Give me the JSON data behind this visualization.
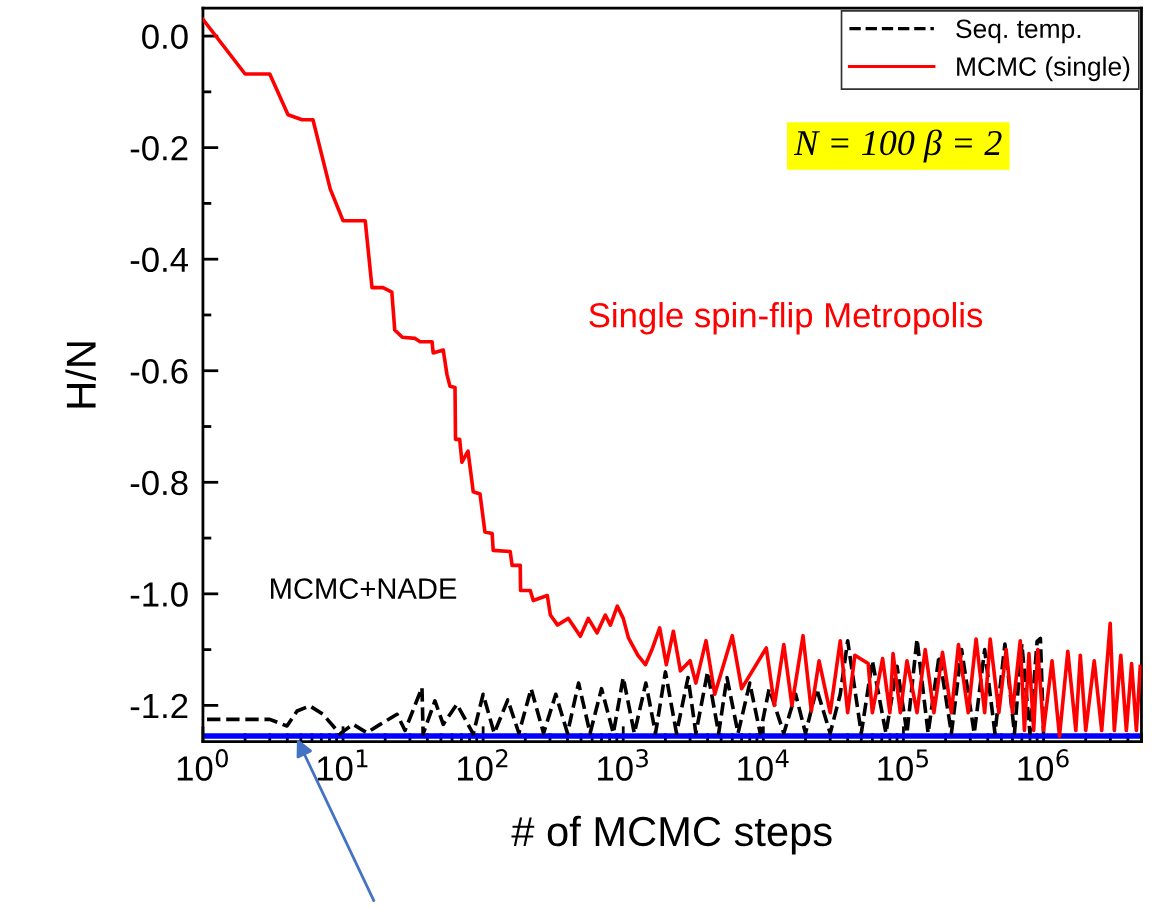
{
  "chart_data": {
    "type": "line",
    "xlabel": "# of MCMC steps",
    "ylabel": "H/N",
    "log": "x",
    "grid": false,
    "legend": "top right",
    "marker": "none",
    "xlim": [
      1,
      5000000
    ],
    "ylim": [
      -1.265,
      0.05
    ],
    "xticks": [
      {
        "value": 1,
        "label": "10$^{0}$"
      },
      {
        "value": 10,
        "label": "10$^{1}$"
      },
      {
        "value": 100,
        "label": "10$^{2}$"
      },
      {
        "value": 1000,
        "label": "10$^{3}$"
      },
      {
        "value": 10000,
        "label": "10$^{4}$"
      },
      {
        "value": 100000,
        "label": "10$^{5}$"
      },
      {
        "value": 1000000,
        "label": "10$^{6}$"
      }
    ],
    "yticks": [
      {
        "value": 0,
        "label": "0.0"
      },
      {
        "value": -0.2,
        "label": "-0.2"
      },
      {
        "value": -0.4,
        "label": "-0.4"
      },
      {
        "value": -0.6,
        "label": "-0.6"
      },
      {
        "value": -0.8,
        "label": "-0.8"
      },
      {
        "value": -1.0,
        "label": "-1.0"
      },
      {
        "value": -1.2,
        "label": "-1.2"
      }
    ],
    "series": [
      {
        "color": "#0000ff",
        "line_style": "solid",
        "x": [
          1,
          5000000
        ],
        "values": [
          -1.255,
          -1.255
        ]
      },
      {
        "name": "Seq. temp.",
        "color": "#000000",
        "line_style": "dashed",
        "x": [
          1.07,
          3.0,
          3.98,
          4.7,
          5.8,
          7.2,
          9.5,
          11.8,
          14.8,
          18.4,
          24.3,
          27.7,
          36.6,
          37.3,
          45.3,
          51.9,
          65,
          85,
          100,
          120,
          150,
          180,
          220,
          270,
          330,
          400,
          480,
          580,
          700,
          850,
          1000,
          1200,
          1450,
          1700,
          2000,
          2400,
          2900,
          3300,
          4000,
          4800,
          5500,
          6600,
          8000,
          9500,
          11000,
          14000,
          17000,
          20000,
          24000,
          30000,
          35400,
          40000,
          50000,
          60000,
          75000,
          90000,
          106000,
          125000,
          150000,
          180000,
          220000,
          260000,
          320000,
          380000,
          450000,
          530000,
          620000,
          700000,
          800000,
          900000,
          950000,
          1000000
        ],
        "values": [
          -1.225,
          -1.225,
          -1.237,
          -1.21,
          -1.201,
          -1.216,
          -1.251,
          -1.234,
          -1.249,
          -1.234,
          -1.216,
          -1.245,
          -1.168,
          -1.251,
          -1.192,
          -1.234,
          -1.198,
          -1.251,
          -1.18,
          -1.25,
          -1.19,
          -1.25,
          -1.17,
          -1.25,
          -1.18,
          -1.25,
          -1.16,
          -1.25,
          -1.17,
          -1.25,
          -1.15,
          -1.25,
          -1.16,
          -1.25,
          -1.14,
          -1.25,
          -1.15,
          -1.25,
          -1.14,
          -1.25,
          -1.15,
          -1.25,
          -1.16,
          -1.25,
          -1.17,
          -1.25,
          -1.18,
          -1.25,
          -1.17,
          -1.25,
          -1.18,
          -1.084,
          -1.25,
          -1.12,
          -1.25,
          -1.13,
          -1.25,
          -1.081,
          -1.25,
          -1.11,
          -1.25,
          -1.1,
          -1.25,
          -1.1,
          -1.25,
          -1.09,
          -1.25,
          -1.09,
          -1.25,
          -1.085,
          -1.08,
          -1.25
        ]
      },
      {
        "name": "MCMC (single)",
        "color": "#ff0000",
        "line_style": "solid",
        "x": [
          1,
          2.0,
          3.0,
          4.05,
          5.1,
          6.1,
          8.1,
          10,
          14.4,
          16.1,
          19.3,
          22.3,
          23.4,
          26.5,
          32.7,
          35.5,
          43.2,
          44,
          51.9,
          55.2,
          58,
          63,
          63.5,
          68,
          70.6,
          78,
          85,
          95,
          103,
          116,
          118,
          156,
          161,
          184,
          185,
          217,
          228,
          287,
          302,
          340,
          406,
          494,
          563,
          650,
          745,
          810,
          907,
          1000,
          1090,
          1270,
          1440,
          1620,
          1820,
          2030,
          2280,
          2560,
          3000,
          3300,
          3900,
          4500,
          6000,
          7000,
          10500,
          12000,
          14000,
          16000,
          19200,
          22000,
          25000,
          30000,
          35400,
          40000,
          45000,
          56000,
          60000,
          71000,
          80000,
          84300,
          95000,
          106000,
          125000,
          143000,
          165000,
          190000,
          220000,
          247000,
          290000,
          330000,
          380000,
          416000,
          480000,
          541000,
          600000,
          682000,
          730000,
          787000,
          850000,
          910000,
          1000000,
          1150000,
          1300000,
          1490000,
          1700000,
          1830000,
          2000000,
          2300000,
          2600000,
          2990000,
          3200000,
          3560000,
          3900000,
          4250000,
          4600000,
          4900000
        ],
        "values": [
          0.03,
          -0.068,
          -0.068,
          -0.141,
          -0.15,
          -0.15,
          -0.274,
          -0.331,
          -0.331,
          -0.451,
          -0.451,
          -0.459,
          -0.527,
          -0.54,
          -0.542,
          -0.548,
          -0.548,
          -0.568,
          -0.563,
          -0.607,
          -0.628,
          -0.63,
          -0.723,
          -0.723,
          -0.764,
          -0.744,
          -0.817,
          -0.821,
          -0.889,
          -0.892,
          -0.922,
          -0.924,
          -0.949,
          -0.949,
          -0.994,
          -0.994,
          -1.012,
          -1.003,
          -1.038,
          -1.056,
          -1.044,
          -1.076,
          -1.044,
          -1.07,
          -1.038,
          -1.056,
          -1.022,
          -1.044,
          -1.079,
          -1.11,
          -1.127,
          -1.097,
          -1.061,
          -1.127,
          -1.067,
          -1.138,
          -1.12,
          -1.16,
          -1.084,
          -1.18,
          -1.075,
          -1.17,
          -1.097,
          -1.2,
          -1.091,
          -1.2,
          -1.075,
          -1.21,
          -1.12,
          -1.213,
          -1.084,
          -1.213,
          -1.11,
          -1.125,
          -1.213,
          -1.116,
          -1.213,
          -1.107,
          -1.213,
          -1.12,
          -1.213,
          -1.1,
          -1.213,
          -1.105,
          -1.213,
          -1.091,
          -1.213,
          -1.081,
          -1.213,
          -1.081,
          -1.213,
          -1.1,
          -1.213,
          -1.084,
          -1.245,
          -1.107,
          -1.245,
          -1.1,
          -1.245,
          -1.12,
          -1.255,
          -1.103,
          -1.245,
          -1.11,
          -1.245,
          -1.12,
          -1.245,
          -1.053,
          -1.245,
          -1.11,
          -1.245,
          -1.125,
          -1.245,
          -1.13
        ]
      }
    ],
    "annotations": [
      "Single spin-flip Metropolis",
      "MCMC+NADE",
      "N = 100 β = 2"
    ]
  }
}
